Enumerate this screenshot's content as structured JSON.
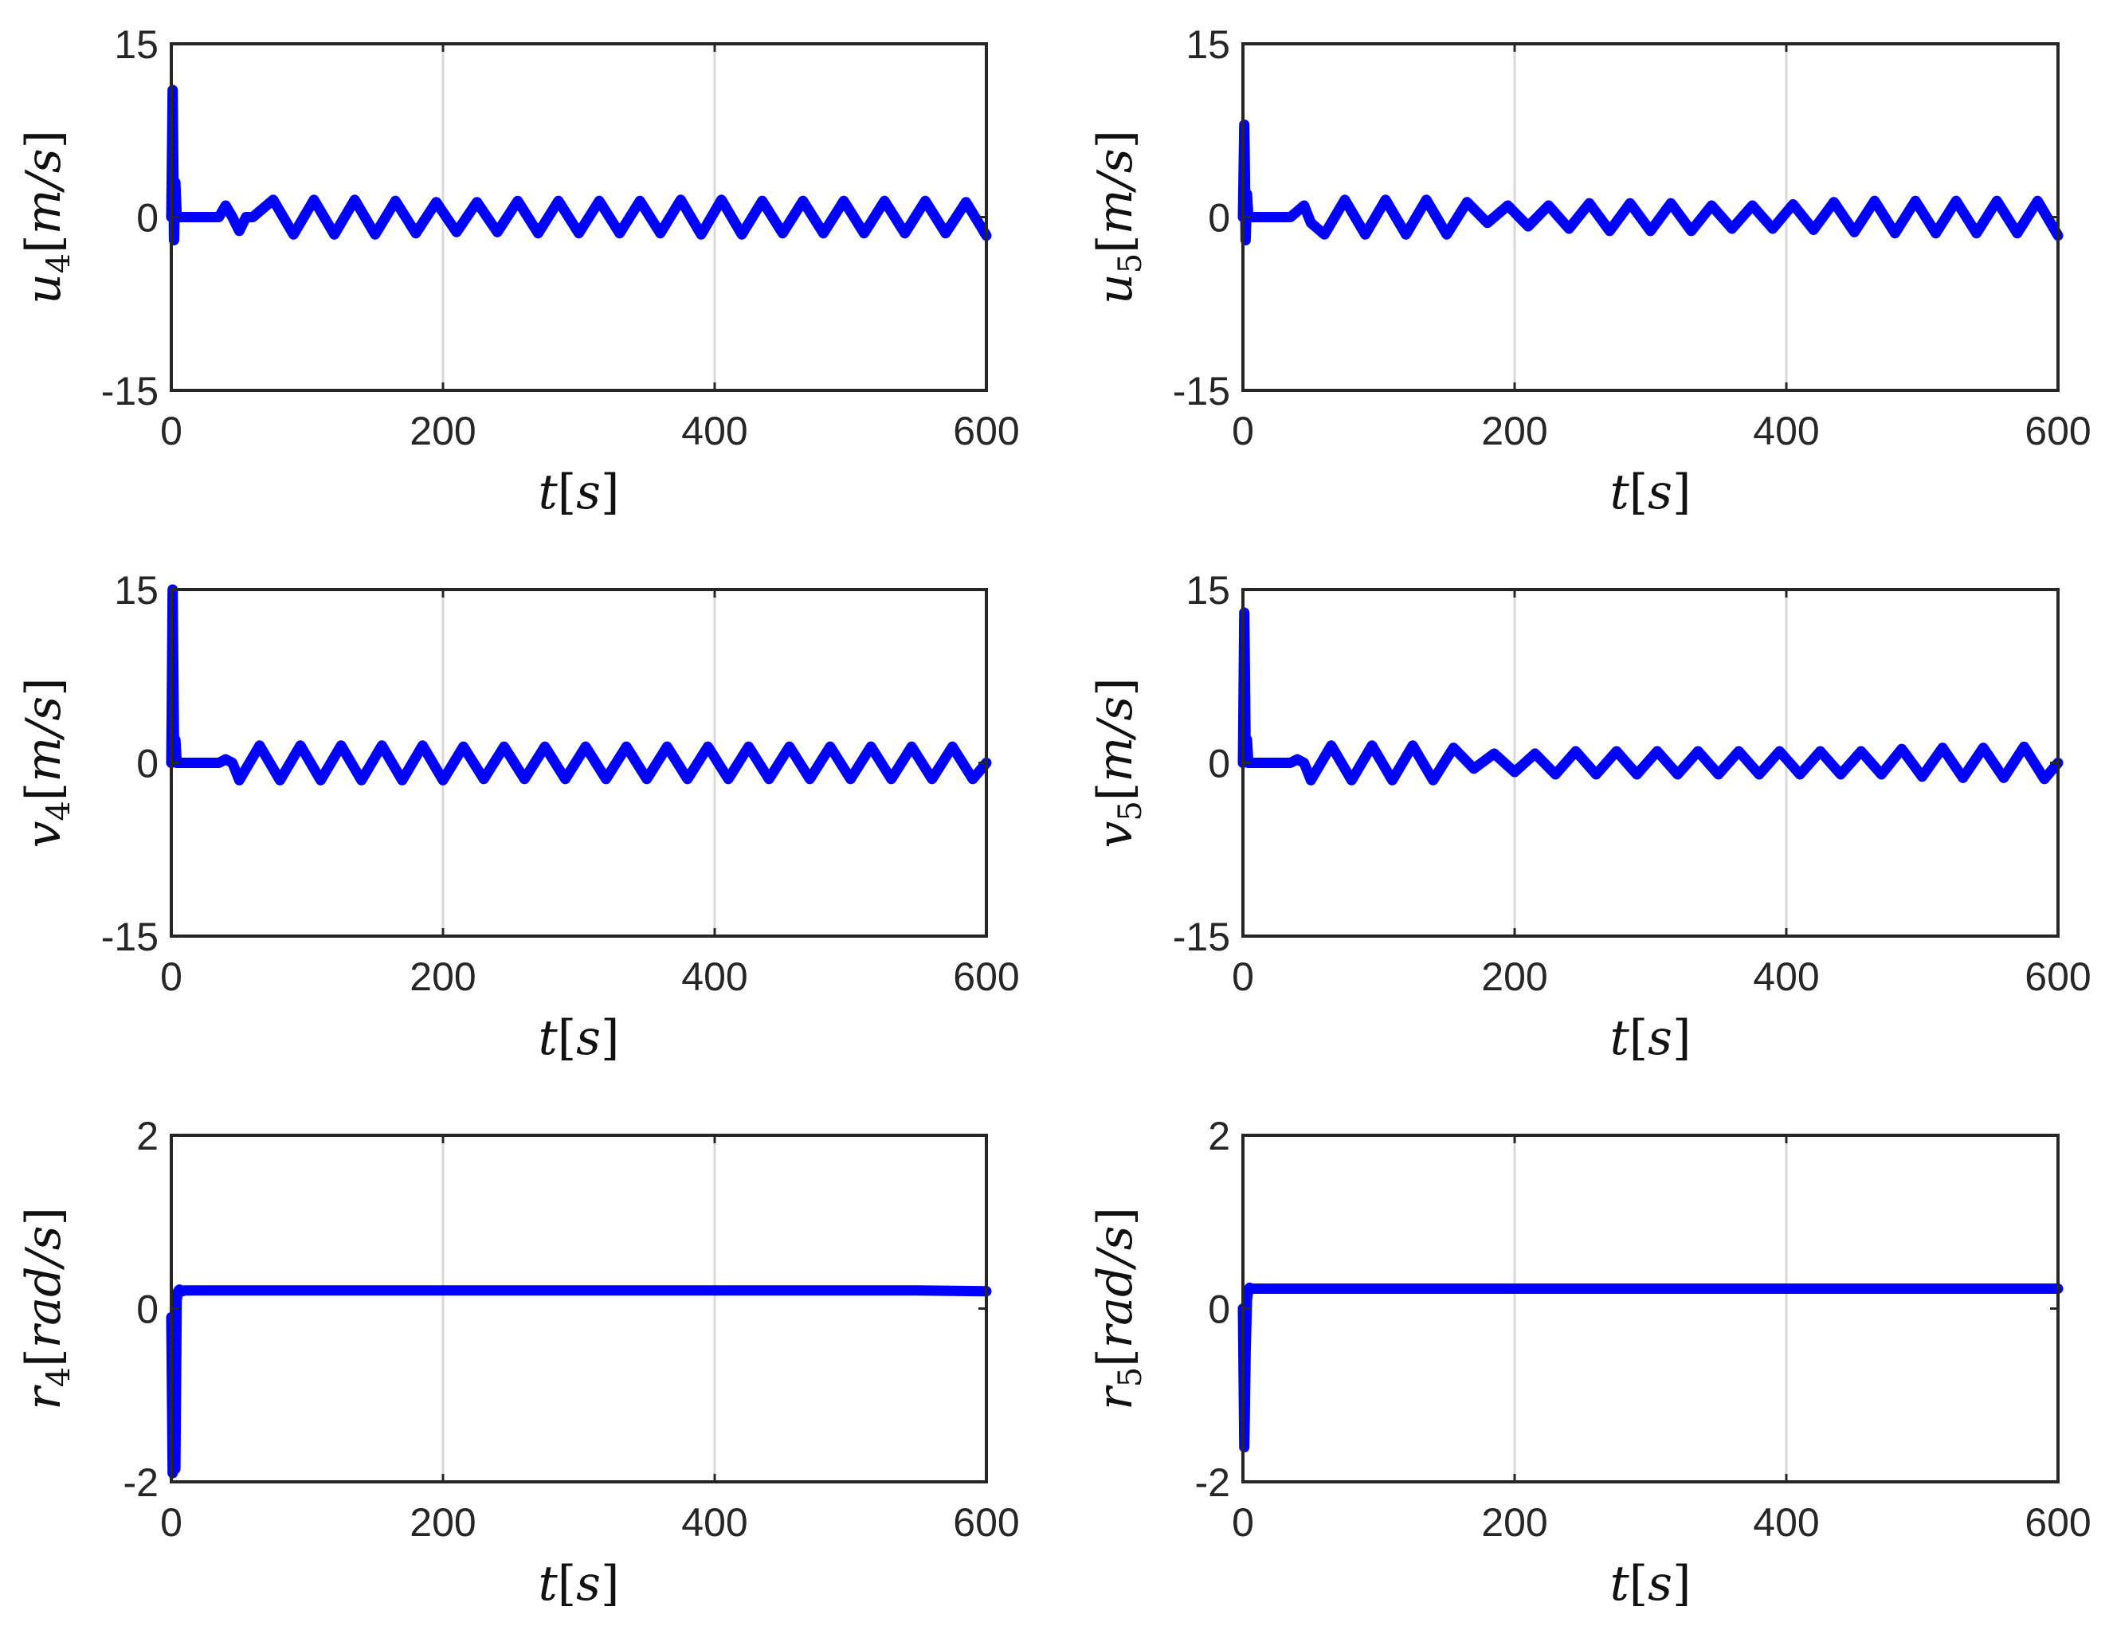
{
  "figure": {
    "panels": [
      {
        "id": "u4",
        "ylabel": {
          "sym": "u",
          "sub": "4",
          "unit": "m/s"
        },
        "xlabel": {
          "sym": "t",
          "unit": "s"
        },
        "yticks": [
          "15",
          "0",
          "-15"
        ],
        "xticks": [
          "0",
          "200",
          "400",
          "600"
        ]
      },
      {
        "id": "u5",
        "ylabel": {
          "sym": "u",
          "sub": "5",
          "unit": "m/s"
        },
        "xlabel": {
          "sym": "t",
          "unit": "s"
        },
        "yticks": [
          "15",
          "0",
          "-15"
        ],
        "xticks": [
          "0",
          "200",
          "400",
          "600"
        ]
      },
      {
        "id": "v4",
        "ylabel": {
          "sym": "v",
          "sub": "4",
          "unit": "m/s"
        },
        "xlabel": {
          "sym": "t",
          "unit": "s"
        },
        "yticks": [
          "15",
          "0",
          "-15"
        ],
        "xticks": [
          "0",
          "200",
          "400",
          "600"
        ]
      },
      {
        "id": "v5",
        "ylabel": {
          "sym": "v",
          "sub": "5",
          "unit": "m/s"
        },
        "xlabel": {
          "sym": "t",
          "unit": "s"
        },
        "yticks": [
          "15",
          "0",
          "-15"
        ],
        "xticks": [
          "0",
          "200",
          "400",
          "600"
        ]
      },
      {
        "id": "r4",
        "ylabel": {
          "sym": "r",
          "sub": "4",
          "unit": "rad/s"
        },
        "xlabel": {
          "sym": "t",
          "unit": "s"
        },
        "yticks": [
          "2",
          "0",
          "-2"
        ],
        "xticks": [
          "0",
          "200",
          "400",
          "600"
        ]
      },
      {
        "id": "r5",
        "ylabel": {
          "sym": "r",
          "sub": "5",
          "unit": "rad/s"
        },
        "xlabel": {
          "sym": "t",
          "unit": "s"
        },
        "yticks": [
          "2",
          "0",
          "-2"
        ],
        "xticks": [
          "0",
          "200",
          "400",
          "600"
        ]
      }
    ]
  },
  "chart_data": [
    {
      "type": "line",
      "ylim": [
        -15,
        15
      ],
      "xlim": [
        0,
        600
      ],
      "grid": "vertical",
      "series": [
        {
          "color": "#0000ff",
          "x": [
            0,
            1,
            2,
            3,
            4,
            5,
            6,
            7,
            10,
            20,
            35,
            40,
            45,
            50,
            55,
            60,
            75,
            90,
            105,
            120,
            135,
            150,
            165,
            180,
            195,
            210,
            225,
            240,
            255,
            270,
            285,
            300,
            315,
            330,
            345,
            360,
            375,
            390,
            405,
            420,
            435,
            450,
            465,
            480,
            495,
            510,
            525,
            540,
            555,
            570,
            585,
            600
          ],
          "y": [
            0,
            11,
            -2,
            3,
            0,
            0,
            0,
            0,
            0,
            0,
            0,
            1.0,
            0,
            -1.2,
            0,
            0,
            1.5,
            -1.5,
            1.5,
            -1.5,
            1.5,
            -1.5,
            1.4,
            -1.4,
            1.3,
            -1.3,
            1.3,
            -1.3,
            1.4,
            -1.4,
            1.4,
            -1.4,
            1.4,
            -1.4,
            1.4,
            -1.4,
            1.5,
            -1.5,
            1.5,
            -1.5,
            1.4,
            -1.4,
            1.4,
            -1.4,
            1.4,
            -1.4,
            1.4,
            -1.4,
            1.4,
            -1.4,
            1.3,
            -1.6
          ]
        }
      ]
    },
    {
      "type": "line",
      "ylim": [
        -15,
        15
      ],
      "xlim": [
        0,
        600
      ],
      "grid": "vertical",
      "series": [
        {
          "color": "#0000ff",
          "x": [
            0,
            1,
            2,
            3,
            4,
            5,
            6,
            10,
            20,
            35,
            40,
            45,
            50,
            60,
            75,
            90,
            105,
            120,
            135,
            150,
            165,
            180,
            195,
            210,
            225,
            240,
            255,
            270,
            285,
            300,
            315,
            330,
            345,
            360,
            375,
            390,
            405,
            420,
            435,
            450,
            465,
            480,
            495,
            510,
            525,
            540,
            555,
            570,
            585,
            600
          ],
          "y": [
            0,
            8,
            -2,
            2,
            0,
            0,
            0,
            0,
            0,
            0,
            0.5,
            1.0,
            -0.5,
            -1.5,
            1.5,
            -1.5,
            1.5,
            -1.5,
            1.5,
            -1.5,
            1.3,
            -0.5,
            1.0,
            -0.8,
            1.0,
            -1.0,
            1.2,
            -1.2,
            1.2,
            -1.2,
            1.2,
            -1.2,
            1.0,
            -1.0,
            1.0,
            -1.0,
            1.1,
            -1.1,
            1.3,
            -1.3,
            1.4,
            -1.4,
            1.4,
            -1.4,
            1.4,
            -1.4,
            1.4,
            -1.4,
            1.4,
            -1.6
          ]
        }
      ]
    },
    {
      "type": "line",
      "ylim": [
        -15,
        15
      ],
      "xlim": [
        0,
        600
      ],
      "grid": "vertical",
      "series": [
        {
          "color": "#0000ff",
          "x": [
            0,
            1,
            2,
            3,
            4,
            5,
            6,
            10,
            20,
            35,
            40,
            45,
            50,
            65,
            80,
            95,
            110,
            125,
            140,
            155,
            170,
            185,
            200,
            215,
            230,
            245,
            260,
            275,
            290,
            305,
            320,
            335,
            350,
            365,
            380,
            395,
            410,
            425,
            440,
            455,
            470,
            485,
            500,
            515,
            530,
            545,
            560,
            575,
            590,
            600
          ],
          "y": [
            0,
            15,
            1,
            2,
            0,
            0,
            0,
            0,
            0,
            0,
            0.3,
            0,
            -1.5,
            1.5,
            -1.5,
            1.5,
            -1.5,
            1.5,
            -1.5,
            1.5,
            -1.5,
            1.5,
            -1.5,
            1.4,
            -1.4,
            1.4,
            -1.4,
            1.4,
            -1.4,
            1.4,
            -1.4,
            1.4,
            -1.4,
            1.4,
            -1.4,
            1.4,
            -1.4,
            1.4,
            -1.4,
            1.4,
            -1.4,
            1.4,
            -1.4,
            1.4,
            -1.4,
            1.4,
            -1.4,
            1.4,
            -1.4,
            0
          ]
        }
      ]
    },
    {
      "type": "line",
      "ylim": [
        -15,
        15
      ],
      "xlim": [
        0,
        600
      ],
      "grid": "vertical",
      "series": [
        {
          "color": "#0000ff",
          "x": [
            0,
            1,
            2,
            3,
            4,
            5,
            10,
            20,
            35,
            40,
            45,
            50,
            65,
            80,
            95,
            110,
            125,
            140,
            155,
            170,
            185,
            200,
            215,
            230,
            245,
            260,
            275,
            290,
            305,
            320,
            335,
            350,
            365,
            380,
            395,
            410,
            425,
            440,
            455,
            470,
            485,
            500,
            515,
            530,
            545,
            560,
            575,
            590,
            600
          ],
          "y": [
            0,
            13,
            1,
            2,
            0,
            0,
            0,
            0,
            0,
            0.3,
            0,
            -1.5,
            1.5,
            -1.5,
            1.5,
            -1.5,
            1.5,
            -1.5,
            1.3,
            -0.5,
            0.8,
            -0.8,
            0.8,
            -1.0,
            1.0,
            -1.0,
            1.0,
            -1.0,
            1.0,
            -1.0,
            1.0,
            -1.0,
            1.0,
            -1.0,
            1.0,
            -1.0,
            1.0,
            -1.0,
            1.0,
            -1.0,
            1.2,
            -1.2,
            1.3,
            -1.3,
            1.3,
            -1.3,
            1.4,
            -1.4,
            0
          ]
        }
      ]
    },
    {
      "type": "line",
      "ylim": [
        -2,
        2
      ],
      "xlim": [
        0,
        600
      ],
      "grid": "vertical",
      "series": [
        {
          "color": "#0000ff",
          "x": [
            0,
            1,
            2,
            3,
            4,
            5,
            6,
            8,
            10,
            50,
            100,
            150,
            200,
            250,
            300,
            350,
            400,
            450,
            500,
            550,
            600
          ],
          "y": [
            -0.1,
            -1.9,
            -1.5,
            -1.85,
            0.1,
            0.2,
            0.22,
            0.2,
            0.21,
            0.21,
            0.21,
            0.21,
            0.21,
            0.21,
            0.21,
            0.21,
            0.21,
            0.21,
            0.21,
            0.21,
            0.2
          ]
        }
      ]
    },
    {
      "type": "line",
      "ylim": [
        -2,
        2
      ],
      "xlim": [
        0,
        600
      ],
      "grid": "vertical",
      "series": [
        {
          "color": "#0000ff",
          "x": [
            0,
            1,
            2,
            3,
            4,
            5,
            6,
            10,
            50,
            100,
            150,
            200,
            250,
            300,
            350,
            400,
            450,
            500,
            550,
            600
          ],
          "y": [
            0,
            -1.6,
            -0.5,
            0.1,
            0.22,
            0.24,
            0.23,
            0.23,
            0.23,
            0.23,
            0.23,
            0.23,
            0.23,
            0.23,
            0.23,
            0.23,
            0.23,
            0.23,
            0.23,
            0.23
          ]
        }
      ]
    }
  ]
}
